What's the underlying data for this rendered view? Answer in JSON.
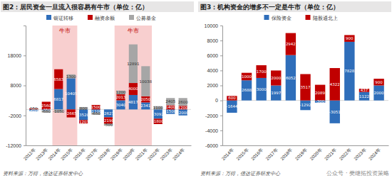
{
  "chart_data": [
    {
      "type": "bar",
      "title": "图2：居民资金一旦流入很容易有牛市（单位：亿）",
      "source": "资料来源：万得，信达证券研发中心",
      "stacked": true,
      "data_labels": true,
      "categories": [
        "2012年",
        "2013年",
        "2014年",
        "2015年",
        "2016年",
        "2017年",
        "2018年",
        "2019年",
        "2020年",
        "2021年",
        "2022年",
        "2023年",
        "2024年"
      ],
      "series": [
        {
          "name": "银证转移",
          "color": "#2f6eba",
          "values": [
            -603,
            -350,
            6817,
            10405,
            -3520,
            -1100,
            -2627,
            3040,
            4817,
            2341,
            -3092,
            -1500,
            -2000
          ]
        },
        {
          "name": "融资余额",
          "color": "#c00000",
          "values": [
            340,
            2560,
            6583,
            -2665,
            -1203,
            1500,
            -2190,
            2013,
            4000,
            2050,
            -1800,
            1400,
            1200
          ]
        },
        {
          "name": "公募基金",
          "color": "#a6a6a6",
          "values": [
            150,
            -680,
            -1050,
            1300,
            800,
            -650,
            -500,
            1200,
            12891,
            10038,
            1100,
            2405,
            2600
          ]
        }
      ],
      "annotations": [
        {
          "text": "牛市",
          "x_from": "2014年",
          "x_to": "2015年"
        },
        {
          "text": "牛市",
          "x_from": "2019年",
          "x_to": "2021年"
        }
      ],
      "ylim": [
        -12000,
        28000
      ],
      "yticks": [
        -12000,
        -2000,
        8000,
        18000
      ]
    },
    {
      "type": "bar",
      "title": "图3：机构资金的增多不一定是牛市（单位：亿）",
      "source": "资料来源：万得，信达证券研发中心",
      "stacked": true,
      "data_labels": true,
      "categories": [
        "2014年",
        "2015年",
        "2016年",
        "2017年",
        "2018年",
        "2019年",
        "2020年",
        "2021年",
        "2022年",
        "2023年",
        "2024年"
      ],
      "series": [
        {
          "name": "保险资金",
          "color": "#2f6eba",
          "values": [
            -1644,
            2688,
            3000,
            1997,
            6052,
            -1292,
            -300,
            -3051,
            7828,
            1122,
            2000
          ]
        },
        {
          "name": "陆股通北上",
          "color": "#c00000",
          "values": [
            600,
            1000,
            1700,
            2000,
            2942,
            3517,
            2089,
            4322,
            900,
            437,
            900
          ]
        }
      ],
      "ylim": [
        -6000,
        10000
      ],
      "yticks": [
        -6000,
        -4000,
        -2000,
        0,
        2000,
        4000,
        6000,
        8000,
        10000
      ]
    }
  ],
  "watermark": "公众号 · 樊继拓投资策略"
}
